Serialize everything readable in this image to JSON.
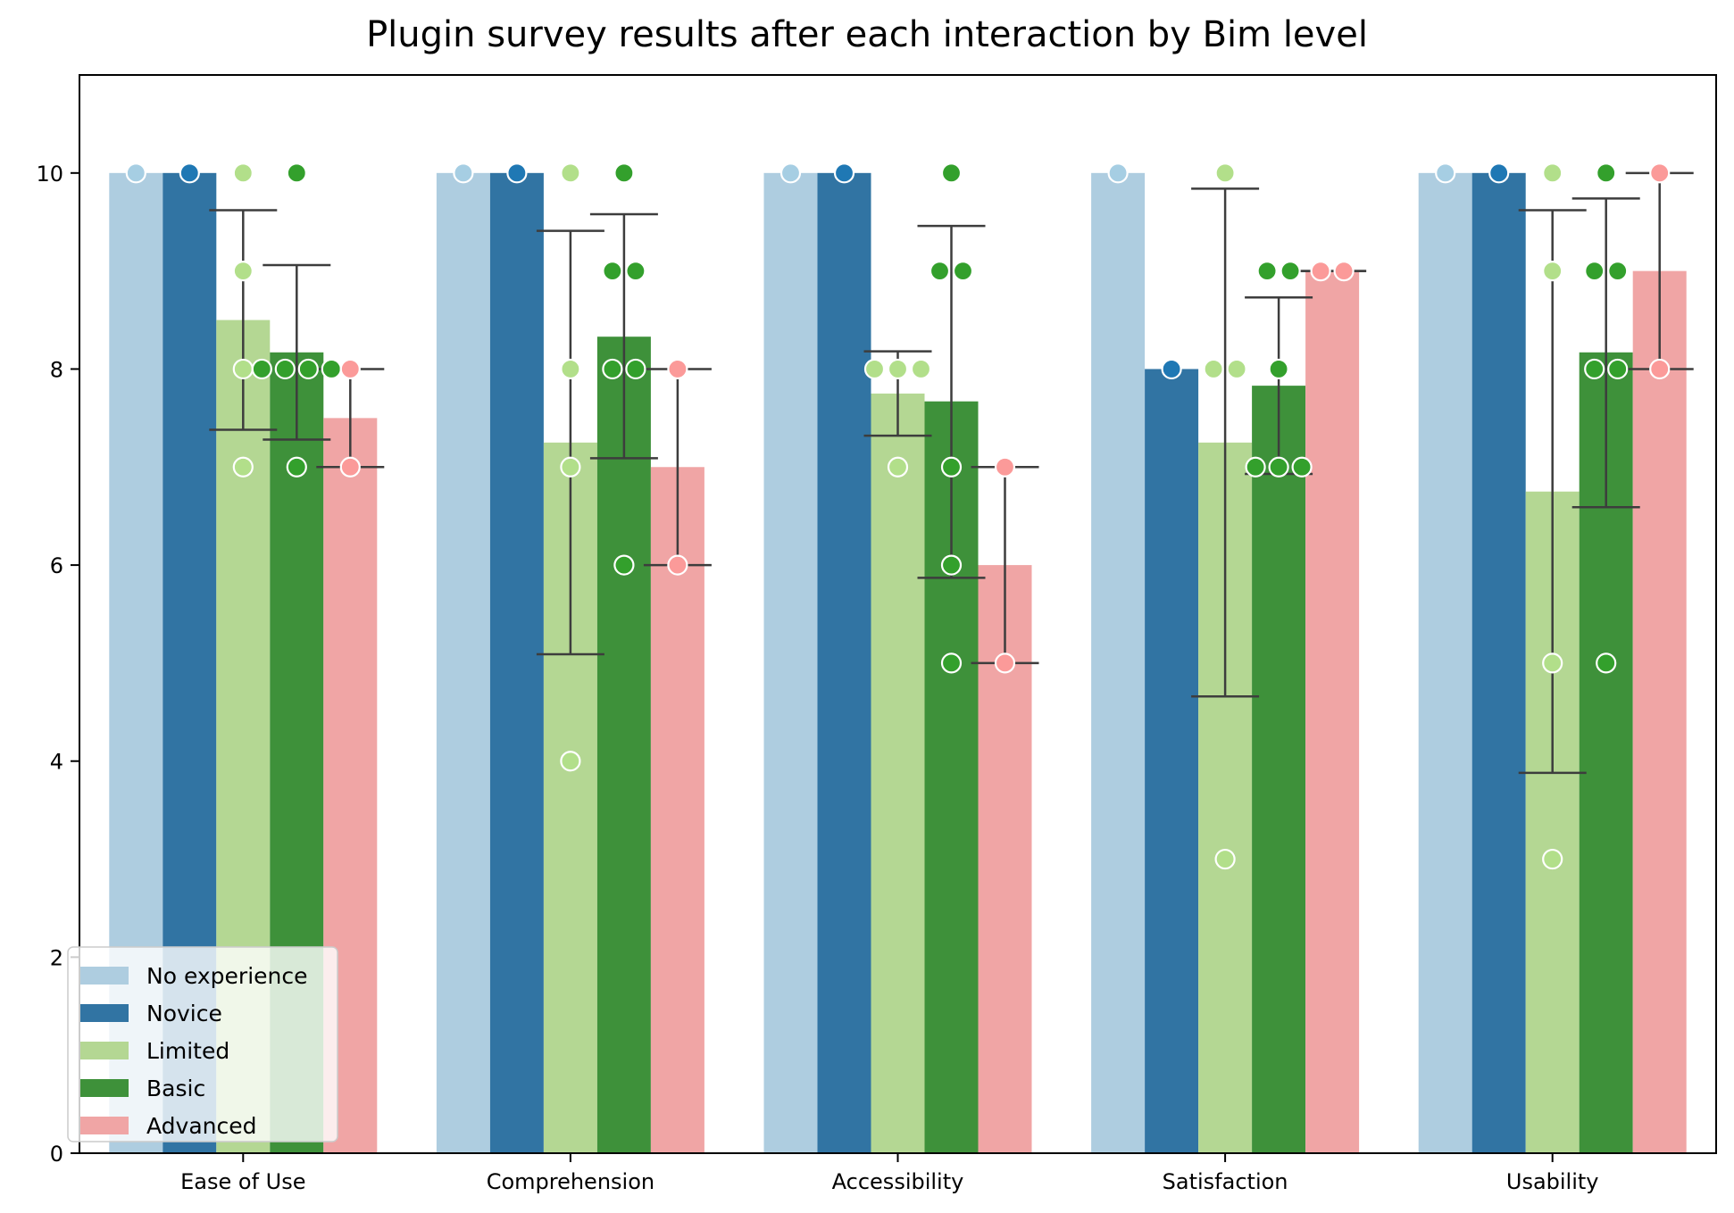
{
  "chart_data": {
    "type": "bar",
    "title": "Plugin survey results after each interaction by Bim level",
    "xlabel": "",
    "ylabel": "",
    "ylim": [
      0,
      11
    ],
    "yticks": [
      0,
      2,
      4,
      6,
      8,
      10
    ],
    "grid": false,
    "legend_position": "bottom-left",
    "categories": [
      "Ease of Use",
      "Comprehension",
      "Accessibility",
      "Satisfaction",
      "Usability"
    ],
    "series": [
      {
        "name": "No experience",
        "color": "#aecde0",
        "point_color": "#a6cee3",
        "values": [
          10,
          10,
          10,
          10,
          10
        ],
        "error_bars": [
          null,
          null,
          null,
          null,
          null
        ],
        "points": [
          [
            10
          ],
          [
            10
          ],
          [
            10
          ],
          [
            10
          ],
          [
            10
          ]
        ]
      },
      {
        "name": "Novice",
        "color": "#3174a3",
        "point_color": "#1f78b4",
        "values": [
          10,
          10,
          10,
          8,
          10
        ],
        "error_bars": [
          null,
          null,
          null,
          null,
          null
        ],
        "points": [
          [
            10
          ],
          [
            10
          ],
          [
            10
          ],
          [
            8
          ],
          [
            10
          ]
        ]
      },
      {
        "name": "Limited",
        "color": "#b4d793",
        "point_color": "#b2df8a",
        "values": [
          8.5,
          7.25,
          7.75,
          7.25,
          6.75
        ],
        "error_bars": [
          [
            7.38,
            9.62
          ],
          [
            5.09,
            9.41
          ],
          [
            7.32,
            8.18
          ],
          [
            4.66,
            9.84
          ],
          [
            3.88,
            9.62
          ]
        ],
        "points": [
          [
            10,
            9,
            8,
            7
          ],
          [
            10,
            8,
            7,
            4
          ],
          [
            8,
            8,
            8,
            7
          ],
          [
            10,
            8,
            8,
            3
          ],
          [
            10,
            9,
            5,
            3
          ]
        ]
      },
      {
        "name": "Basic",
        "color": "#3e913a",
        "point_color": "#33a02c",
        "values": [
          8.17,
          8.33,
          7.67,
          7.83,
          8.17
        ],
        "error_bars": [
          [
            7.28,
            9.06
          ],
          [
            7.09,
            9.58
          ],
          [
            5.87,
            9.46
          ],
          [
            6.93,
            8.73
          ],
          [
            6.59,
            9.74
          ]
        ],
        "points": [
          [
            10,
            8,
            8,
            8,
            8,
            7
          ],
          [
            10,
            9,
            9,
            8,
            8,
            6
          ],
          [
            10,
            9,
            9,
            7,
            6,
            5
          ],
          [
            9,
            9,
            8,
            7,
            7,
            7
          ],
          [
            10,
            9,
            9,
            8,
            8,
            5
          ]
        ]
      },
      {
        "name": "Advanced",
        "color": "#f0a5a5",
        "point_color": "#fb9a99",
        "values": [
          7.5,
          7,
          6,
          9,
          9
        ],
        "error_bars": [
          [
            7,
            8
          ],
          [
            6,
            8
          ],
          [
            5,
            7
          ],
          [
            9,
            9
          ],
          [
            8,
            10
          ]
        ],
        "points": [
          [
            8,
            7
          ],
          [
            8,
            6
          ],
          [
            7,
            5
          ],
          [
            9,
            9
          ],
          [
            10,
            8
          ]
        ]
      }
    ]
  }
}
